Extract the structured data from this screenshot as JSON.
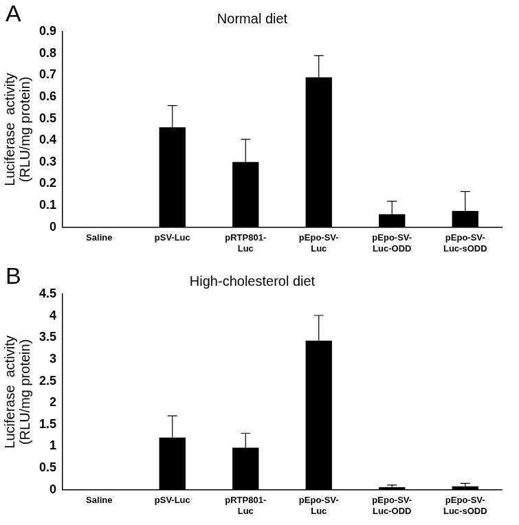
{
  "chart_data": [
    {
      "type": "bar",
      "panel_label": "A",
      "title": "Normal diet",
      "y_label": "Luciferase  activity\n(RLU/mg protein)",
      "categories": [
        "Saline",
        "pSV-Luc",
        "pRTP801-\nLuc",
        "pEpo-SV-\nLuc",
        "pEpo-SV-\nLuc-ODD",
        "pEpo-SV-\nLuc-sODD"
      ],
      "values": [
        0,
        0.46,
        0.3,
        0.69,
        0.06,
        0.075
      ],
      "errors": [
        0,
        0.1,
        0.105,
        0.1,
        0.06,
        0.09
      ],
      "color": "#000000",
      "ylim": [
        0,
        0.9
      ],
      "yticks": [
        0,
        0.1,
        0.2,
        0.3,
        0.4,
        0.5,
        0.6,
        0.7,
        0.8,
        0.9
      ],
      "grid": false
    },
    {
      "type": "bar",
      "panel_label": "B",
      "title": "High-cholesterol diet",
      "y_label": "Luciferase  activity\n(RLU/mg protein)",
      "categories": [
        "Saline",
        "pSV-Luc",
        "pRTP801-\nLuc",
        "pEpo-SV-\nLuc",
        "pEpo-SV-\nLuc-ODD",
        "pEpo-SV-\nLuc-sODD"
      ],
      "values": [
        0,
        1.2,
        0.97,
        3.43,
        0.06,
        0.08
      ],
      "errors": [
        0,
        0.5,
        0.33,
        0.58,
        0.05,
        0.07
      ],
      "color": "#000000",
      "ylim": [
        0,
        4.5
      ],
      "yticks": [
        0,
        0.5,
        1,
        1.5,
        2,
        2.5,
        3,
        3.5,
        4,
        4.5
      ],
      "grid": false
    }
  ]
}
